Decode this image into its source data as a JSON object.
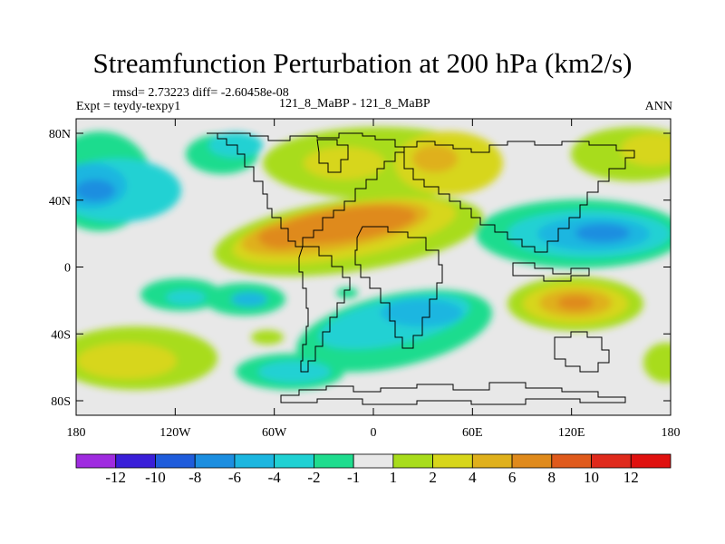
{
  "chart_data": {
    "type": "contour-map",
    "title": "Streamfunction Perturbation at 200 hPa (km2/s)",
    "stats": "rmsd= 2.73223 diff= -2.60458e-08",
    "experiment": "Expt = teydy-texpy1",
    "case": "121_8_MaBP - 121_8_MaBP",
    "period": "ANN",
    "x_ticks": [
      "180",
      "120W",
      "60W",
      "0",
      "60E",
      "120E",
      "180"
    ],
    "y_ticks": [
      "80N",
      "40N",
      "0",
      "40S",
      "80S"
    ],
    "x_range": [
      -180,
      180
    ],
    "y_range": [
      -90,
      90
    ],
    "colorbar_levels": [
      "-12",
      "-10",
      "-8",
      "-6",
      "-4",
      "-2",
      "-1",
      "1",
      "2",
      "4",
      "6",
      "8",
      "10",
      "12"
    ],
    "colorbar_colors": [
      "#9f2bdf",
      "#3a1fd8",
      "#1f5cdb",
      "#1c8ee0",
      "#1cb6e0",
      "#20d1d3",
      "#1fdc8e",
      "#e8e8e8",
      "#a8dc1c",
      "#d7d61b",
      "#dfb01c",
      "#df8a1c",
      "#df5a1c",
      "#df2a1c",
      "#e0110f"
    ]
  }
}
